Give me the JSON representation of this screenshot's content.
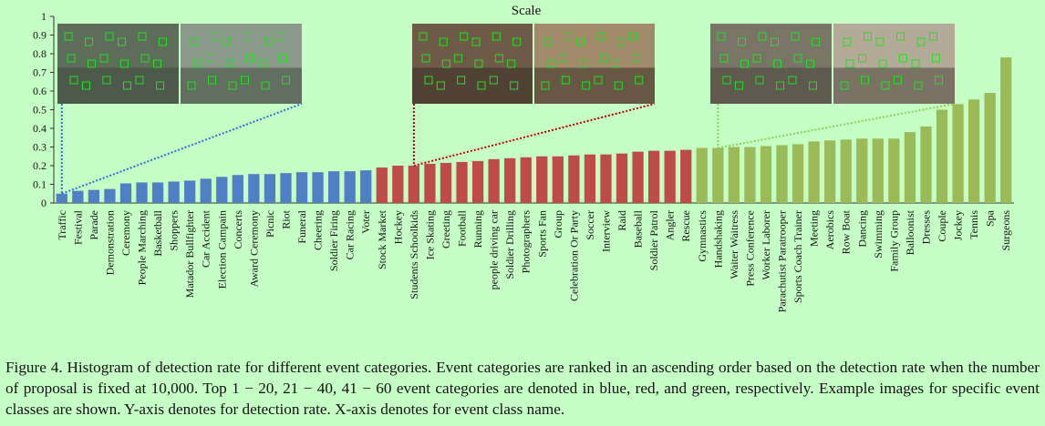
{
  "chart_data": {
    "type": "bar",
    "title": "Scale",
    "xlabel": "",
    "ylabel": "",
    "ylim": [
      0,
      1
    ],
    "yticks": [
      "0",
      "0.1",
      "0.2",
      "0.3",
      "0.4",
      "0.5",
      "0.6",
      "0.7",
      "0.8",
      "0.9",
      "1"
    ],
    "grid": false,
    "colors": {
      "group1": "#4f7fc4",
      "group2": "#bf4b48",
      "group3": "#9bbb59"
    },
    "categories": [
      "Traffic",
      "Festival",
      "Parade",
      "Demonstration",
      "Ceremony",
      "People Marching",
      "Basketball",
      "Shoppers",
      "Matador Bullfighter",
      "Car Accident",
      "Election Campain",
      "Concerts",
      "Award Ceremony",
      "Picnic",
      "Riot",
      "Funeral",
      "Cheering",
      "Soldier Firing",
      "Car Racing",
      "Voter",
      "Stock Market",
      "Hockey",
      "Students Schoolkids",
      "Ice Skating",
      "Greeting",
      "Football",
      "Running",
      "people driving car",
      "Soldier Drilling",
      "Photographers",
      "Sports Fan",
      "Group",
      "Celebration Or Party",
      "Soccer",
      "Interview",
      "Raid",
      "Baseball",
      "Soldier Patrol",
      "Angler",
      "Rescue",
      "Gymnastics",
      "Handshaking",
      "Waiter Waitress",
      "Press Conference",
      "Worker Laborer",
      "Parachutist Paratrooper",
      "Sports Coach Trainer",
      "Meeting",
      "Aerobics",
      "Row Boat",
      "Dancing",
      "Swimming",
      "Family Group",
      "Balloonist",
      "Dresses",
      "Couple",
      "Jockey",
      "Tennis",
      "Spa",
      "Surgeons"
    ],
    "values": [
      0.05,
      0.065,
      0.07,
      0.075,
      0.105,
      0.11,
      0.11,
      0.115,
      0.12,
      0.13,
      0.14,
      0.15,
      0.155,
      0.155,
      0.16,
      0.165,
      0.165,
      0.17,
      0.17,
      0.175,
      0.19,
      0.2,
      0.2,
      0.21,
      0.215,
      0.22,
      0.225,
      0.235,
      0.24,
      0.245,
      0.25,
      0.25,
      0.255,
      0.26,
      0.26,
      0.265,
      0.275,
      0.28,
      0.28,
      0.285,
      0.295,
      0.295,
      0.3,
      0.3,
      0.305,
      0.31,
      0.315,
      0.33,
      0.335,
      0.34,
      0.345,
      0.345,
      0.345,
      0.38,
      0.41,
      0.5,
      0.53,
      0.555,
      0.59,
      0.78
    ],
    "groups": [
      {
        "color": "#4f7fc4",
        "start": 0,
        "end": 19
      },
      {
        "color": "#bf4b48",
        "start": 20,
        "end": 39
      },
      {
        "color": "#9bbb59",
        "start": 40,
        "end": 59
      }
    ]
  },
  "example_images": [
    {
      "name": "traffic-example-images",
      "color": "#2a6fd6",
      "category_index": 0
    },
    {
      "name": "students-schoolkids-example-images",
      "color": "#c00000",
      "category_index": 22
    },
    {
      "name": "handshaking-example-images",
      "color": "#8fd14f",
      "category_index": 41
    }
  ],
  "caption": "Figure 4. Histogram of detection rate for different event categories. Event categories are ranked in an ascending order based on the detection rate when the number of proposal is fixed at 10,000. Top 1 − 20, 21 − 40, 41 − 60 event categories are denoted in blue, red, and green, respectively. Example images for specific event classes are shown. Y-axis denotes for detection rate. X-axis denotes for event class name."
}
